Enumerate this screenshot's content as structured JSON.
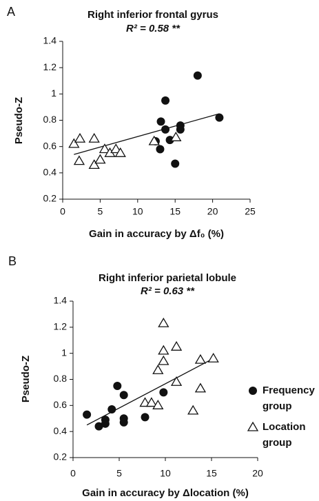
{
  "chart_data": [
    {
      "type": "scatter",
      "panel": "A",
      "title": "Right inferior frontal gyrus",
      "subtitle": "R² = 0.58 **",
      "x_label": "Gain in accuracy by Δf₀ (%)",
      "y_label": "Pseudo-Z",
      "xlim": [
        0,
        25
      ],
      "xticks": [
        0,
        5,
        10,
        15,
        20,
        25
      ],
      "ylim": [
        0.2,
        1.4
      ],
      "yticks": [
        0.2,
        0.4,
        0.6,
        0.8,
        1,
        1.2,
        1.4
      ],
      "series": [
        {
          "marker": "circle",
          "color": "#111111",
          "x": [
            18.0,
            13.7,
            13.1,
            13.7,
            14.3,
            15.7,
            15.7,
            12.4,
            13.0,
            15.0,
            20.9
          ],
          "values": [
            1.14,
            0.95,
            0.79,
            0.73,
            0.65,
            0.76,
            0.73,
            0.64,
            0.58,
            0.47,
            0.82
          ]
        },
        {
          "marker": "triangle",
          "color": "#111111",
          "x": [
            1.5,
            2.3,
            2.2,
            4.2,
            4.2,
            5.0,
            5.6,
            6.3,
            7.1,
            7.7,
            12.2,
            15.1
          ],
          "values": [
            0.62,
            0.66,
            0.49,
            0.66,
            0.46,
            0.5,
            0.58,
            0.55,
            0.58,
            0.55,
            0.64,
            0.67
          ]
        }
      ],
      "fit": {
        "x": [
          1.5,
          20.9
        ],
        "values": [
          0.54,
          0.85
        ]
      }
    },
    {
      "type": "scatter",
      "panel": "B",
      "title": "Right inferior parietal lobule",
      "subtitle": "R² = 0.63 **",
      "x_label": "Gain in accuracy by Δlocation (%)",
      "y_label": "Pseudo-Z",
      "xlim": [
        0,
        20
      ],
      "xticks": [
        0,
        5,
        10,
        15,
        20
      ],
      "ylim": [
        0.2,
        1.4
      ],
      "yticks": [
        0.2,
        0.4,
        0.6,
        0.8,
        1,
        1.2,
        1.4
      ],
      "legend": "right",
      "series": [
        {
          "name": "Frequency group",
          "marker": "circle",
          "color": "#111111",
          "x": [
            1.5,
            2.8,
            3.5,
            3.5,
            4.2,
            4.8,
            5.5,
            5.5,
            5.5,
            7.8,
            9.8
          ],
          "values": [
            0.53,
            0.44,
            0.49,
            0.46,
            0.57,
            0.75,
            0.68,
            0.5,
            0.47,
            0.51,
            0.7
          ]
        },
        {
          "name": "Location group",
          "marker": "triangle",
          "color": "#111111",
          "x": [
            7.8,
            8.5,
            9.2,
            9.2,
            9.8,
            9.8,
            9.8,
            11.2,
            11.2,
            13.0,
            13.8,
            13.8,
            15.2
          ],
          "values": [
            0.62,
            0.62,
            0.87,
            0.6,
            1.23,
            1.02,
            0.94,
            1.05,
            0.78,
            0.56,
            0.95,
            0.73,
            0.96
          ]
        }
      ],
      "fit": {
        "x": [
          1.5,
          15.2
        ],
        "values": [
          0.45,
          0.96
        ]
      }
    }
  ]
}
